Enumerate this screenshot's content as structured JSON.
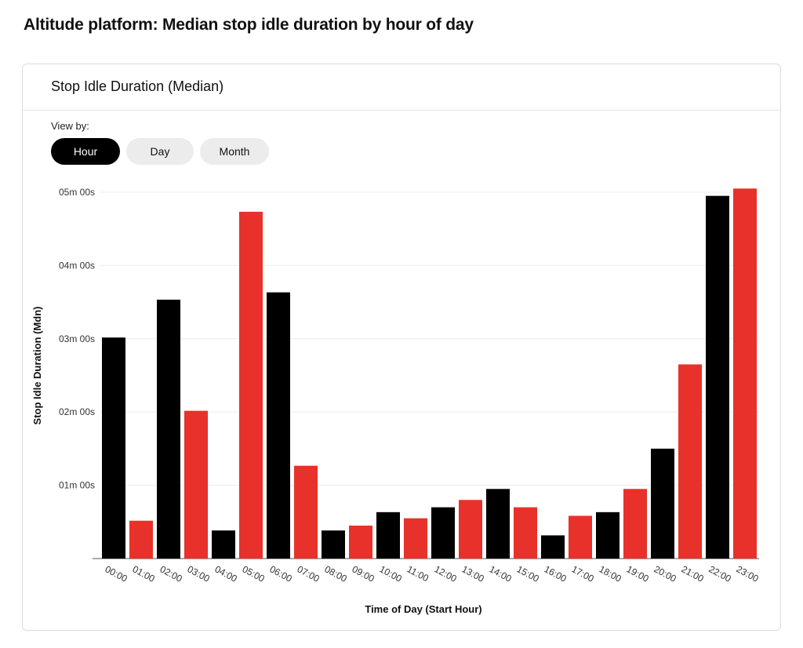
{
  "page": {
    "title": "Altitude platform: Median stop idle duration by hour of day"
  },
  "card": {
    "title": "Stop Idle Duration (Median)",
    "view_by_label": "View by:",
    "view_options": [
      "Hour",
      "Day",
      "Month"
    ],
    "selected_view": "Hour"
  },
  "colors": {
    "series_a": "#000000",
    "series_b": "#e8312a",
    "active_pill": "#000000",
    "inactive_pill": "#ececec"
  },
  "chart_data": {
    "type": "bar",
    "title": "Stop Idle Duration (Median)",
    "xlabel": "Time of Day (Start Hour)",
    "ylabel": "Stop Idle Duration (Mdn)",
    "unit": "seconds",
    "ylim": [
      0,
      300
    ],
    "yticks": [
      60,
      120,
      180,
      240,
      300
    ],
    "ytick_labels": [
      "01m 00s",
      "02m 00s",
      "03m 00s",
      "04m 00s",
      "05m 00s"
    ],
    "grid": true,
    "bar_color_pattern": "alternating black / red starting with black",
    "categories": [
      "00:00",
      "01:00",
      "02:00",
      "03:00",
      "04:00",
      "05:00",
      "06:00",
      "07:00",
      "08:00",
      "09:00",
      "10:00",
      "11:00",
      "12:00",
      "13:00",
      "14:00",
      "15:00",
      "16:00",
      "17:00",
      "18:00",
      "19:00",
      "20:00",
      "21:00",
      "22:00",
      "23:00"
    ],
    "values": [
      181,
      31,
      212,
      121,
      23,
      284,
      218,
      76,
      23,
      27,
      38,
      33,
      42,
      48,
      57,
      42,
      19,
      35,
      38,
      57,
      90,
      159,
      297,
      303
    ]
  }
}
